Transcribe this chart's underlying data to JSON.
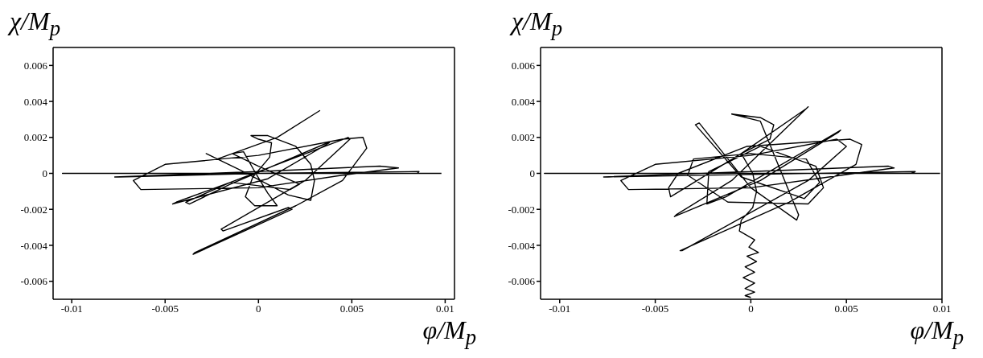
{
  "chart_data": [
    {
      "type": "line",
      "xlabel": "φ/M$_{p}$",
      "ylabel": "χ/M$_{p}$",
      "xlim": [
        -0.011,
        0.0105
      ],
      "ylim": [
        -0.007,
        0.007
      ],
      "xticks": [
        -0.01,
        -0.005,
        0,
        0.005,
        0.01
      ],
      "yticks": [
        -0.006,
        -0.004,
        -0.002,
        0,
        0.002,
        0.004,
        0.006
      ],
      "marker": "none",
      "line_style": "solid",
      "series": [
        {
          "color": "#000000",
          "x": [
            0.0033,
            0.001,
            -0.0022,
            -0.0028,
            -0.001,
            0.0016,
            0.0028,
            0.003,
            0.0028,
            0.002,
            0.0005,
            -0.0004,
            0,
            0.0007,
            0.0006,
            -0.0003,
            -0.0007,
            -0.0002,
            0.001,
            0.0005,
            -0.0002,
            -0.0008,
            -0.0014,
            0,
            0.0022,
            0.0017,
            -0.0015,
            -0.0039,
            -0.0037,
            -0.0015,
            0.0037,
            0.0038,
            0.0005,
            -0.0046,
            -0.0044,
            -0.0015,
            0.0048,
            0.0049,
            0.0025,
            -0.002,
            -0.0019,
            0.0016,
            0.0018,
            -0.0035,
            -0.0034,
            0.002,
            0.0045,
            0.0058,
            0.0056,
            0.0045,
            0,
            -0.005,
            -0.0067,
            -0.0063,
            0,
            0.0045,
            0.0075,
            0.0065,
            0,
            -0.0077,
            -0.0075,
            0,
            0.0086,
            0.0085,
            0,
            -0.0105,
            0.0098
          ],
          "values": [
            0.0035,
            0.002,
            0.0008,
            0.0011,
            0.0002,
            -0.0012,
            -0.0015,
            -0.0004,
            0.0005,
            0.0015,
            0.0021,
            0.0021,
            0.0019,
            0.0017,
            0.0009,
            -0.0002,
            -0.0013,
            -0.0018,
            -0.0018,
            -0.0011,
            0.0001,
            0.0012,
            0.0011,
            0.0004,
            -0.0006,
            -0.0009,
            -0.0005,
            -0.0016,
            -0.0017,
            -0.0006,
            0.0017,
            0.0017,
            -0.0003,
            -0.0017,
            -0.0016,
            -0.0005,
            0.002,
            0.0019,
            -0.0004,
            -0.0031,
            -0.0032,
            -0.0019,
            -0.002,
            -0.0045,
            -0.0044,
            -0.0018,
            -0.0004,
            0.0014,
            0.002,
            0.0019,
            0.001,
            0.0005,
            -0.0004,
            -0.0009,
            -0.0008,
            -0.0001,
            0.0003,
            0.0004,
            0.0001,
            -0.0002,
            -0.0002,
            0,
            0.0001,
            0,
            0,
            0,
            0
          ]
        }
      ]
    },
    {
      "type": "line",
      "xlabel": "φ/M$_{p}$",
      "ylabel": "χ/M$_{p}$",
      "xlim": [
        -0.011,
        0.01
      ],
      "ylim": [
        -0.007,
        0.007
      ],
      "xticks": [
        -0.01,
        -0.005,
        0,
        0.005,
        0.01
      ],
      "yticks": [
        -0.006,
        -0.004,
        -0.002,
        0,
        0.002,
        0.004,
        0.006
      ],
      "marker": "none",
      "line_style": "solid",
      "series": [
        {
          "color": "#000000",
          "x": [
            0,
            -0.0003,
            0.0002,
            -0.0003,
            0.0002,
            -0.0004,
            0.0002,
            -0.0003,
            0.0003,
            -0.0002,
            0.0004,
            -0.0001,
            0.0002,
            -0.0006,
            -0.0005,
            0.0001,
            0.0003,
            0.0001,
            -0.0005,
            0.001,
            0.0012,
            0.0005,
            -0.001,
            0.0005,
            0.0025,
            0.0024,
            0,
            -0.0027,
            -0.0029,
            -0.0005,
            0.0028,
            0.0036,
            0.0029,
            0,
            -0.003,
            -0.0033,
            -0.0012,
            0.003,
            0.0038,
            0.0034,
            0.0005,
            -0.0022,
            -0.0023,
            -0.0013,
            0.0047,
            0.0046,
            0.0005,
            -0.004,
            -0.0039,
            -0.001,
            0.003,
            0.0029,
            -0.0005,
            -0.0042,
            -0.0043,
            -0.0038,
            -0.0002,
            0.0052,
            0.0058,
            0.0055,
            0.002,
            -0.0037,
            -0.0036,
            0.003,
            0.005,
            0.0045,
            0,
            -0.005,
            -0.0068,
            -0.0064,
            0,
            0.0075,
            0.0072,
            0,
            -0.0077,
            -0.0075,
            0.0086,
            0.0084,
            -0.0108,
            0.0099
          ],
          "values": [
            -0.0069,
            -0.0068,
            -0.0066,
            -0.0064,
            -0.0061,
            -0.0058,
            -0.0055,
            -0.0052,
            -0.0049,
            -0.0046,
            -0.0044,
            -0.0041,
            -0.0037,
            -0.0032,
            -0.0026,
            -0.0019,
            -0.001,
            0,
            0.0011,
            0.0019,
            0.0027,
            0.0031,
            0.0033,
            0.0029,
            -0.0023,
            -0.0026,
            -0.0008,
            0.0028,
            0.0027,
            -0.0002,
            -0.0014,
            -0.0005,
            0.0008,
            0.0011,
            0.0008,
            -0.0001,
            -0.0016,
            -0.0017,
            -0.0008,
            0.0004,
            0.0015,
            0.0001,
            -0.0017,
            -0.0013,
            0.0024,
            0.0023,
            -0.0004,
            -0.0024,
            -0.0023,
            -0.0004,
            0.0037,
            0.0036,
            0.0011,
            -0.0013,
            -0.0008,
            0,
            0.0015,
            0.0019,
            0.0016,
            0.0005,
            -0.0016,
            -0.0043,
            -0.0043,
            -0.0004,
            0.0015,
            0.0019,
            0.001,
            0.0005,
            -0.0004,
            -0.0009,
            -0.0008,
            0.0003,
            0.0004,
            0.0001,
            -0.0002,
            -0.0002,
            0.0001,
            0,
            0,
            0
          ]
        }
      ]
    }
  ]
}
